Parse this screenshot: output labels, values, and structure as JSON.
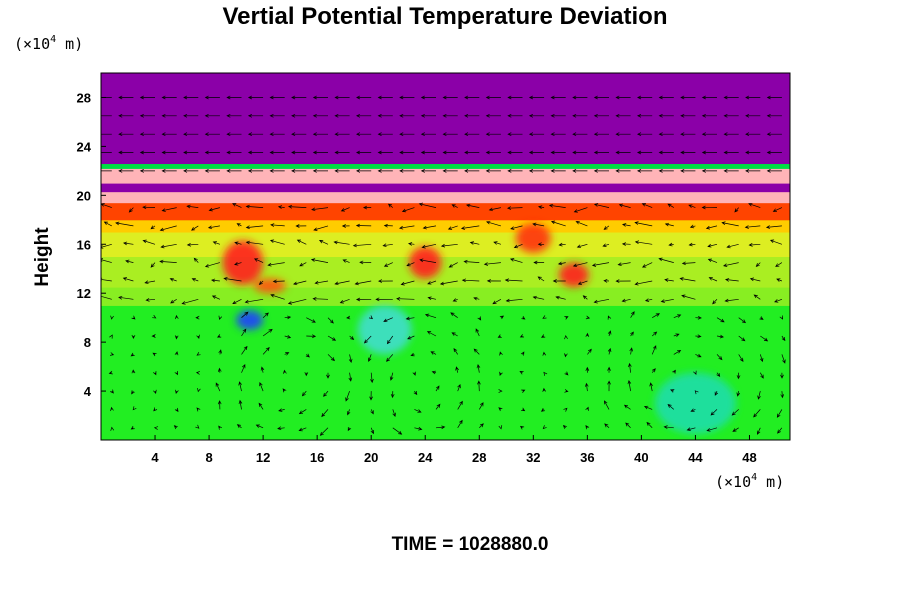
{
  "chart_data": {
    "type": "heatmap",
    "title": "Vertial Potential Temperature Deviation",
    "ylabel": "Height",
    "xlabel": "",
    "y_unit": {
      "prefix": "(×10",
      "exp": "4",
      "suffix": " m)"
    },
    "x_unit": {
      "prefix": "(×10",
      "exp": "4",
      "suffix": " m)"
    },
    "xlim": [
      0,
      51
    ],
    "ylim": [
      0,
      30
    ],
    "x_ticks": [
      "4",
      "8",
      "12",
      "16",
      "20",
      "24",
      "28",
      "32",
      "36",
      "40",
      "44",
      "48"
    ],
    "y_ticks": [
      "4",
      "8",
      "12",
      "16",
      "20",
      "24",
      "28"
    ],
    "overlay": "wind vectors",
    "layers": [
      {
        "y0": 0,
        "y1": 11,
        "color": "#22ee22"
      },
      {
        "y0": 11,
        "y1": 12.5,
        "color": "#88ee22"
      },
      {
        "y0": 12.5,
        "y1": 15,
        "color": "#aaee22"
      },
      {
        "y0": 15,
        "y1": 17,
        "color": "#ddee22"
      },
      {
        "y0": 17,
        "y1": 18,
        "color": "#ffcc00"
      },
      {
        "y0": 18,
        "y1": 19.4,
        "color": "#ff4400"
      },
      {
        "y0": 19.4,
        "y1": 20.3,
        "color": "#ffb4b8"
      },
      {
        "y0": 20.3,
        "y1": 21,
        "color": "#8b00a8"
      },
      {
        "y0": 21,
        "y1": 22.2,
        "color": "#ffb4b8"
      },
      {
        "y0": 22.2,
        "y1": 22.6,
        "color": "#00dd44"
      },
      {
        "y0": 22.6,
        "y1": 30,
        "color": "#8b00a8"
      }
    ],
    "anomalies": [
      {
        "x": 10.5,
        "y": 14.5,
        "rx": 1.5,
        "ry": 1.8,
        "color": "#ff2020"
      },
      {
        "x": 12.5,
        "y": 12.6,
        "rx": 1.2,
        "ry": 0.6,
        "color": "#ff5010"
      },
      {
        "x": 11.0,
        "y": 9.8,
        "rx": 1.0,
        "ry": 0.8,
        "color": "#2040ff"
      },
      {
        "x": 24.0,
        "y": 14.5,
        "rx": 1.2,
        "ry": 1.3,
        "color": "#ff2020"
      },
      {
        "x": 32.0,
        "y": 16.5,
        "rx": 1.3,
        "ry": 1.2,
        "color": "#ff3010"
      },
      {
        "x": 35.0,
        "y": 13.5,
        "rx": 1.1,
        "ry": 1.0,
        "color": "#ff2020"
      },
      {
        "x": 44.0,
        "y": 3.0,
        "rx": 3.0,
        "ry": 2.5,
        "color": "#20ddaa"
      },
      {
        "x": 21.0,
        "y": 9.0,
        "rx": 2.0,
        "ry": 2.0,
        "color": "#40ddcc"
      }
    ],
    "vortices": [
      {
        "x": 14,
        "y": 5,
        "rx": 4,
        "ry": 5,
        "dir": -1
      },
      {
        "x": 24,
        "y": 5,
        "rx": 4,
        "ry": 5,
        "dir": 1
      },
      {
        "x": 44,
        "y": 5,
        "rx": 6,
        "ry": 5,
        "dir": -1
      }
    ]
  },
  "footer": {
    "time_label": "TIME = 1028880.0"
  },
  "colors": {
    "frame": "#000000",
    "arrow": "#000000"
  }
}
